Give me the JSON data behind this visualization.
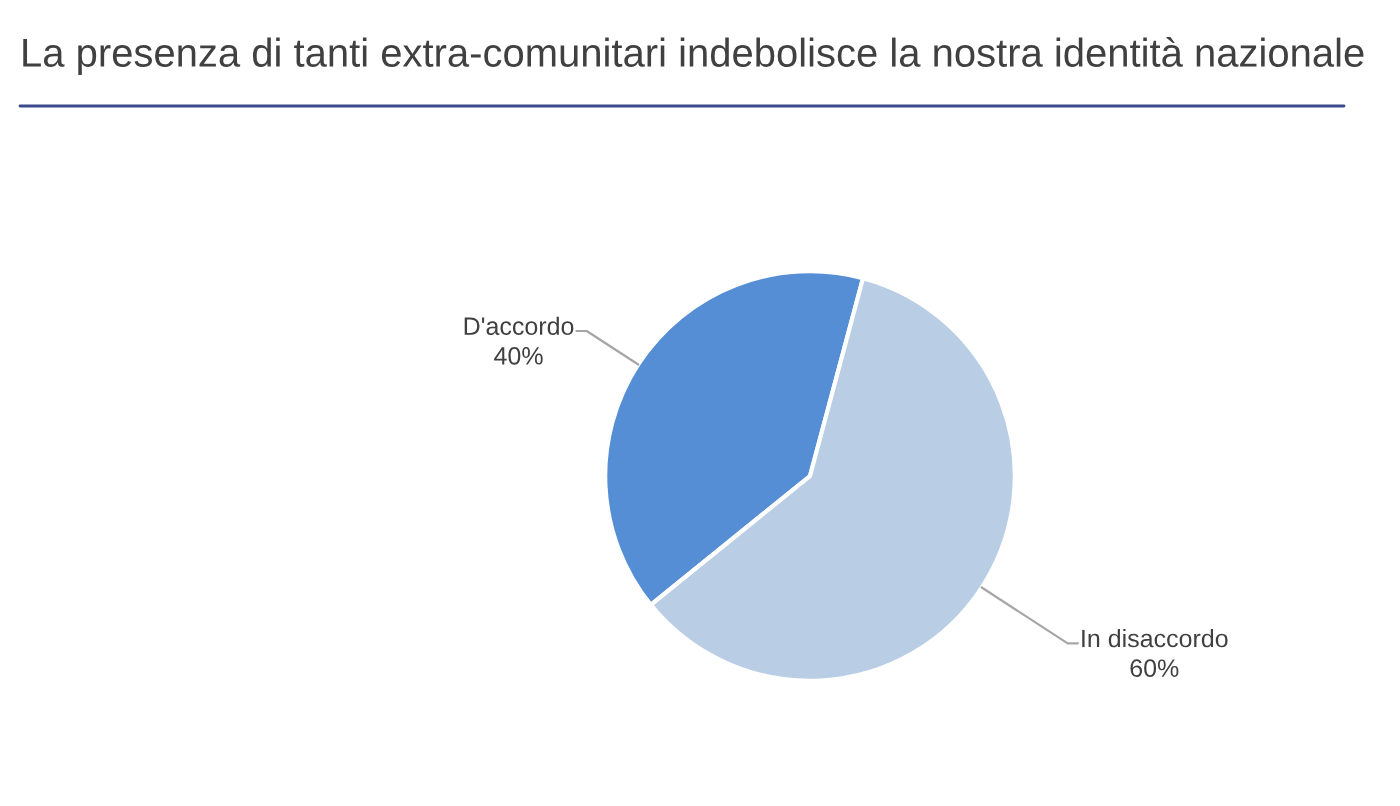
{
  "chart_data": {
    "type": "pie",
    "title": "La presenza di tanti extra-comunitari indebolisce la nostra identità nazionale",
    "categories": [
      "D'accordo",
      "In disaccordo"
    ],
    "values": [
      40,
      60
    ],
    "colors": [
      "#558ed5",
      "#b9cde5"
    ],
    "value_labels": [
      "40%",
      "60%"
    ]
  }
}
